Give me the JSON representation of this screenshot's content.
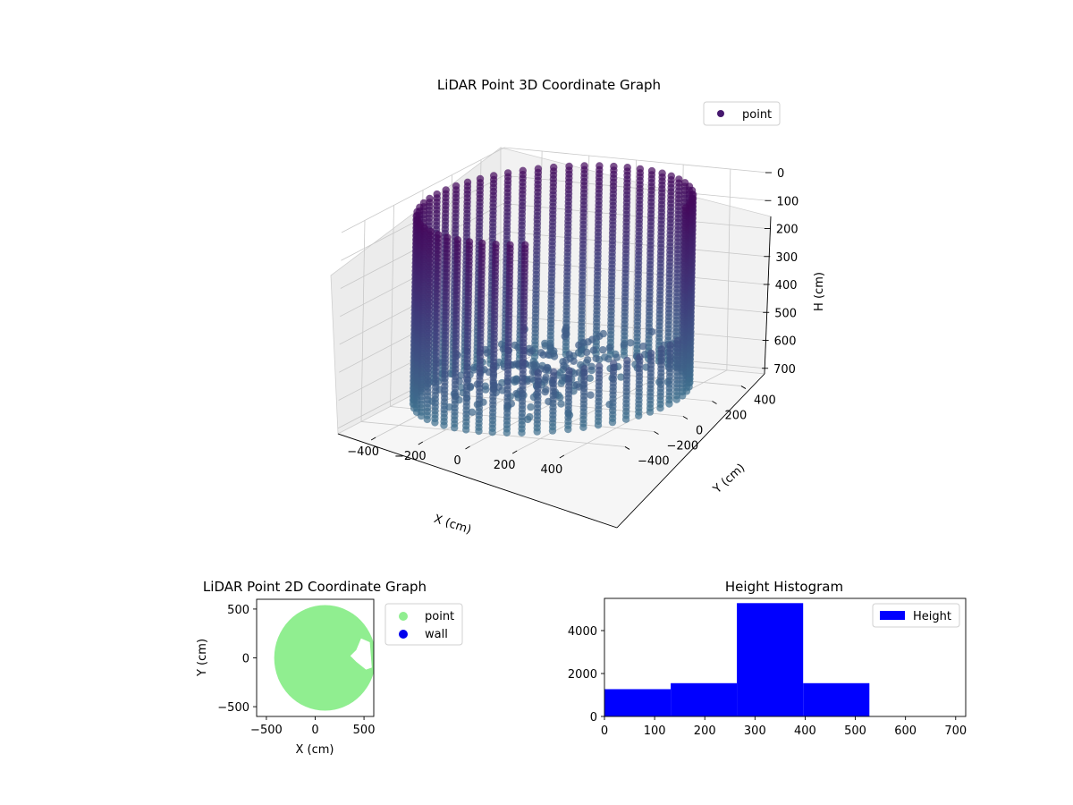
{
  "chart_data": [
    {
      "type": "scatter",
      "title": "LiDAR Point 3D Coordinate Graph",
      "xlabel": "X (cm)",
      "ylabel": "Y (cm)",
      "zlabel": "H (cm)",
      "xlim": [
        -560,
        560
      ],
      "ylim": [
        -560,
        560
      ],
      "zlim": [
        0,
        720
      ],
      "z_inverted": true,
      "x_ticks": [
        -400,
        -200,
        0,
        200,
        400
      ],
      "y_ticks": [
        -400,
        -200,
        0,
        200,
        400
      ],
      "z_ticks": [
        0,
        100,
        200,
        300,
        400,
        500,
        600,
        700
      ],
      "x_tick_labels": [
        "−400",
        "−200",
        "0",
        "200",
        "400"
      ],
      "y_tick_labels": [
        "−400",
        "−200",
        "0",
        "200",
        "400"
      ],
      "z_tick_labels": [
        "0",
        "100",
        "200",
        "300",
        "400",
        "500",
        "600",
        "700"
      ],
      "legend": {
        "placement": "upper-right",
        "entries": [
          {
            "label": "point",
            "color": "#46186e"
          }
        ]
      },
      "colormap": "viridis",
      "wall_radius": 500,
      "wall_height_range": [
        0,
        700
      ],
      "opening_theta_deg": [
        -70,
        10
      ],
      "columns": 56,
      "colors": {
        "top": "#44075c",
        "mid": "#3f3e7c",
        "bottom": "#3e7590"
      }
    },
    {
      "type": "scatter",
      "title": "LiDAR Point 2D Coordinate Graph",
      "xlabel": "X (cm)",
      "ylabel": "Y (cm)",
      "xlim": [
        -600,
        600
      ],
      "ylim": [
        -600,
        600
      ],
      "x_ticks": [
        -500,
        0,
        500
      ],
      "y_ticks": [
        -500,
        0,
        500
      ],
      "x_tick_labels": [
        "−500",
        "0",
        "500"
      ],
      "y_tick_labels": [
        "−500",
        "0",
        "500"
      ],
      "legend": {
        "placement": "outside-right",
        "entries": [
          {
            "label": "point",
            "color": "#90ee90"
          },
          {
            "label": "wall",
            "color": "#0000ee"
          }
        ]
      },
      "point_color": "#90ee90",
      "region_center": [
        100,
        0
      ],
      "region_radius": 520,
      "gap_polygon": [
        [
          560,
          160
        ],
        [
          470,
          200
        ],
        [
          420,
          80
        ],
        [
          360,
          20
        ],
        [
          420,
          -40
        ],
        [
          520,
          -120
        ],
        [
          580,
          -100
        ]
      ]
    },
    {
      "type": "bar",
      "title": "Height Histogram",
      "xlabel": "",
      "ylabel": "",
      "xlim": [
        0,
        720
      ],
      "ylim": [
        0,
        5500
      ],
      "x_ticks": [
        0,
        100,
        200,
        300,
        400,
        500,
        600,
        700
      ],
      "y_ticks": [
        0,
        2000,
        4000
      ],
      "bin_edges": [
        0,
        132,
        264,
        396,
        528,
        660,
        720
      ],
      "values": [
        1270,
        1550,
        5280,
        1550,
        0,
        0
      ],
      "bar_color": "#0000ff",
      "legend": {
        "placement": "upper-right",
        "entries": [
          {
            "label": "Height",
            "color": "#0000ff"
          }
        ]
      }
    }
  ]
}
